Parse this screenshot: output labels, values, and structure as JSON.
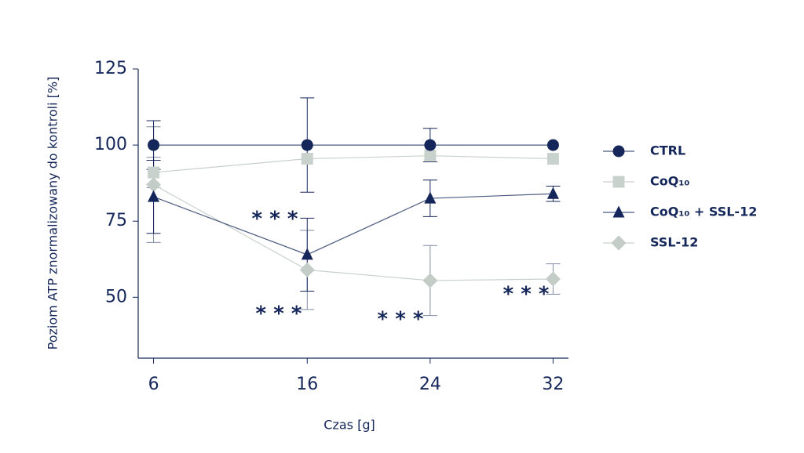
{
  "chart_data": {
    "type": "line",
    "x_label": "Czas [g]",
    "y_label": "Poziom ATP znormalizowany do kontroli [%]",
    "x": [
      6,
      16,
      24,
      32
    ],
    "xlim": [
      5,
      33
    ],
    "xticks": [
      6,
      16,
      24,
      32
    ],
    "ylim": [
      30,
      125
    ],
    "yticks": [
      50,
      75,
      100,
      125
    ],
    "legend": "right",
    "series": [
      {
        "name": "CTRL",
        "color": "#15275a",
        "marker": "circle",
        "values": [
          100,
          100,
          100,
          100
        ],
        "errors": [
          8,
          15.5,
          5.5,
          null
        ]
      },
      {
        "name": "CoQ₁₀",
        "color": "#c9d1cd",
        "marker": "square",
        "values": [
          91,
          95.5,
          96.5,
          95.5
        ],
        "errors": [
          5,
          null,
          null,
          null
        ]
      },
      {
        "name": "CoQ₁₀ + SSL-12",
        "color": "#15275a",
        "marker": "triangle",
        "values": [
          83,
          64,
          82.5,
          84
        ],
        "errors": [
          12,
          12,
          6,
          2.5
        ]
      },
      {
        "name": "SSL-12",
        "color": "#c3ccc6",
        "marker": "diamond",
        "values": [
          87,
          59,
          55.5,
          56
        ],
        "errors": [
          19,
          13,
          11.5,
          5
        ]
      }
    ],
    "annotations": [
      "* * *",
      "* * *",
      "* * *",
      "* * *"
    ]
  }
}
